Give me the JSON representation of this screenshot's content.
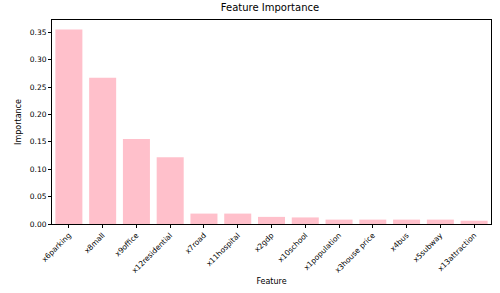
{
  "chart_data": {
    "type": "bar",
    "title": "Feature Importance",
    "x_label": "Feature",
    "y_label": "Importance",
    "categories": [
      "x6parking",
      "x8mall",
      "x9office",
      "x12residential",
      "x7road",
      "x11hospital",
      "x2gdp",
      "x10school",
      "x1population",
      "x3house price",
      "x4bus",
      "x5subway",
      "x13attraction"
    ],
    "values": [
      0.355,
      0.267,
      0.155,
      0.122,
      0.019,
      0.019,
      0.013,
      0.012,
      0.008,
      0.008,
      0.008,
      0.008,
      0.006
    ],
    "color": "#ffc0cb",
    "ylim": [
      0,
      0.3725
    ],
    "yticks": [
      {
        "value": 0,
        "label": "0.00"
      },
      {
        "value": 0.05,
        "label": "0.05"
      },
      {
        "value": 0.1,
        "label": "0.10"
      },
      {
        "value": 0.15,
        "label": "0.15"
      },
      {
        "value": 0.2,
        "label": "0.20"
      },
      {
        "value": 0.25,
        "label": "0.25"
      },
      {
        "value": 0.3,
        "label": "0.30"
      },
      {
        "value": 0.35,
        "label": "0.35"
      }
    ],
    "grid": false
  }
}
